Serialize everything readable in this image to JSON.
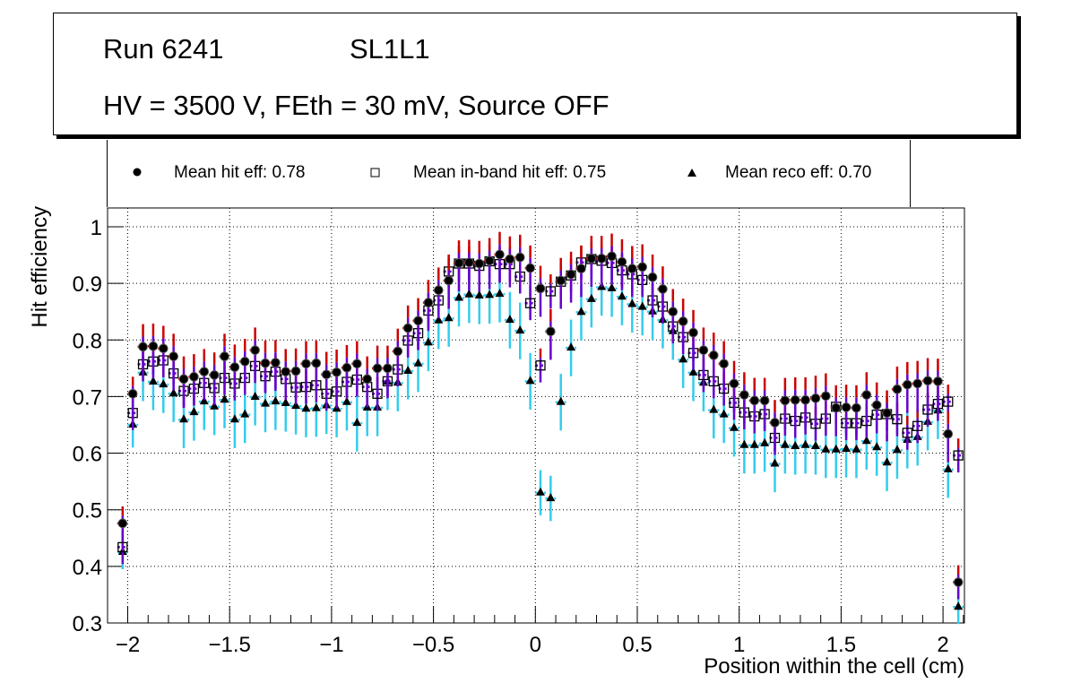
{
  "title_box": {
    "line1_run": "Run 6241",
    "line1_layer": "SL1L1",
    "line2": "HV = 3500 V, FEth = 30 mV, Source OFF"
  },
  "legend": {
    "items": [
      {
        "label": "Mean hit  eff: 0.78",
        "marker": "filled-circle"
      },
      {
        "label": "Mean in-band hit eff: 0.75",
        "marker": "open-square"
      },
      {
        "label": "Mean reco eff: 0.70",
        "marker": "filled-triangle"
      }
    ]
  },
  "chart_data": {
    "type": "scatter",
    "title": "Run 6241 SL1L1 — HV = 3500 V, FEth = 30 mV, Source OFF",
    "xlabel": "Position within the cell (cm)",
    "ylabel": "Hit efficiency",
    "xlim": [
      -2.1,
      2.1
    ],
    "ylim": [
      0.3,
      1.03
    ],
    "xticks": [
      -2,
      -1.5,
      -1,
      -0.5,
      0,
      0.5,
      1,
      1.5,
      2
    ],
    "xtick_labels": [
      "−2",
      "−1.5",
      "−1",
      "−0.5",
      "0",
      "0.5",
      "1",
      "1.5",
      "2"
    ],
    "yticks": [
      0.3,
      0.4,
      0.5,
      0.6,
      0.7,
      0.8,
      0.9,
      1.0
    ],
    "ytick_labels": [
      "0.3",
      "0.4",
      "0.5",
      "0.6",
      "0.7",
      "0.8",
      "0.9",
      "1"
    ],
    "grid": true,
    "legend_position": "top",
    "x": [
      -2.025,
      -1.975,
      -1.925,
      -1.875,
      -1.825,
      -1.775,
      -1.725,
      -1.675,
      -1.625,
      -1.575,
      -1.525,
      -1.475,
      -1.425,
      -1.375,
      -1.325,
      -1.275,
      -1.225,
      -1.175,
      -1.125,
      -1.075,
      -1.025,
      -0.975,
      -0.925,
      -0.875,
      -0.825,
      -0.775,
      -0.725,
      -0.675,
      -0.625,
      -0.575,
      -0.525,
      -0.475,
      -0.425,
      -0.375,
      -0.325,
      -0.275,
      -0.225,
      -0.175,
      -0.125,
      -0.075,
      -0.025,
      0.025,
      0.075,
      0.125,
      0.175,
      0.225,
      0.275,
      0.325,
      0.375,
      0.425,
      0.475,
      0.525,
      0.575,
      0.625,
      0.675,
      0.725,
      0.775,
      0.825,
      0.875,
      0.925,
      0.975,
      1.025,
      1.075,
      1.125,
      1.175,
      1.225,
      1.275,
      1.325,
      1.375,
      1.425,
      1.475,
      1.525,
      1.575,
      1.625,
      1.675,
      1.725,
      1.775,
      1.825,
      1.875,
      1.925,
      1.975,
      2.025,
      2.075
    ],
    "series": [
      {
        "name": "Mean hit  eff: 0.78",
        "marker": "filled-circle",
        "error_colors": [
          "#cc0000",
          "#6600cc"
        ],
        "values": [
          0.476,
          0.705,
          0.788,
          0.789,
          0.785,
          0.771,
          0.731,
          0.735,
          0.744,
          0.738,
          0.771,
          0.752,
          0.762,
          0.782,
          0.759,
          0.76,
          0.744,
          0.745,
          0.758,
          0.759,
          0.739,
          0.743,
          0.751,
          0.758,
          0.731,
          0.75,
          0.75,
          0.78,
          0.821,
          0.834,
          0.866,
          0.888,
          0.905,
          0.936,
          0.937,
          0.935,
          0.94,
          0.951,
          0.943,
          0.946,
          0.927,
          0.891,
          0.815,
          0.905,
          0.916,
          0.926,
          0.944,
          0.944,
          0.948,
          0.938,
          0.926,
          0.929,
          0.911,
          0.89,
          0.85,
          0.833,
          0.813,
          0.782,
          0.773,
          0.758,
          0.723,
          0.703,
          0.693,
          0.693,
          0.654,
          0.693,
          0.694,
          0.694,
          0.697,
          0.701,
          0.68,
          0.681,
          0.68,
          0.703,
          0.685,
          0.671,
          0.713,
          0.721,
          0.723,
          0.728,
          0.727,
          0.634,
          0.372
        ],
        "err_up": [
          0.03,
          0.03,
          0.04,
          0.04,
          0.04,
          0.04,
          0.04,
          0.04,
          0.04,
          0.04,
          0.04,
          0.04,
          0.04,
          0.04,
          0.04,
          0.04,
          0.04,
          0.04,
          0.04,
          0.04,
          0.04,
          0.04,
          0.04,
          0.04,
          0.04,
          0.04,
          0.04,
          0.04,
          0.04,
          0.04,
          0.04,
          0.04,
          0.04,
          0.04,
          0.04,
          0.04,
          0.04,
          0.04,
          0.04,
          0.04,
          0.04,
          0.04,
          0.04,
          0.04,
          0.04,
          0.04,
          0.04,
          0.04,
          0.04,
          0.04,
          0.04,
          0.04,
          0.04,
          0.04,
          0.04,
          0.04,
          0.04,
          0.04,
          0.04,
          0.04,
          0.04,
          0.04,
          0.04,
          0.04,
          0.04,
          0.04,
          0.04,
          0.04,
          0.04,
          0.04,
          0.04,
          0.04,
          0.04,
          0.04,
          0.04,
          0.04,
          0.04,
          0.04,
          0.04,
          0.04,
          0.04,
          0.04,
          0.03
        ],
        "err_down": [
          0.03,
          0.05,
          0.05,
          0.05,
          0.05,
          0.05,
          0.05,
          0.05,
          0.05,
          0.05,
          0.05,
          0.05,
          0.05,
          0.05,
          0.05,
          0.05,
          0.05,
          0.05,
          0.05,
          0.05,
          0.05,
          0.05,
          0.05,
          0.05,
          0.05,
          0.05,
          0.05,
          0.05,
          0.05,
          0.05,
          0.05,
          0.05,
          0.05,
          0.05,
          0.05,
          0.05,
          0.05,
          0.05,
          0.05,
          0.05,
          0.05,
          0.05,
          0.05,
          0.05,
          0.05,
          0.05,
          0.05,
          0.05,
          0.05,
          0.05,
          0.05,
          0.05,
          0.05,
          0.05,
          0.05,
          0.05,
          0.05,
          0.05,
          0.05,
          0.05,
          0.05,
          0.05,
          0.05,
          0.05,
          0.05,
          0.05,
          0.05,
          0.05,
          0.05,
          0.05,
          0.05,
          0.05,
          0.05,
          0.05,
          0.05,
          0.05,
          0.05,
          0.05,
          0.05,
          0.05,
          0.05,
          0.05,
          0.03
        ]
      },
      {
        "name": "Mean in-band hit eff: 0.75",
        "marker": "open-square",
        "error_colors": [
          "#cc0000",
          "#6600cc"
        ],
        "values": [
          0.434,
          0.671,
          0.757,
          0.762,
          0.764,
          0.741,
          0.71,
          0.714,
          0.724,
          0.715,
          0.733,
          0.723,
          0.733,
          0.754,
          0.736,
          0.744,
          0.731,
          0.716,
          0.717,
          0.72,
          0.705,
          0.709,
          0.726,
          0.73,
          0.717,
          0.705,
          0.727,
          0.748,
          0.799,
          0.812,
          0.852,
          0.87,
          0.921,
          0.935,
          0.935,
          0.931,
          0.939,
          0.934,
          0.934,
          0.912,
          0.865,
          0.755,
          0.886,
          0.903,
          0.914,
          0.937,
          0.943,
          0.94,
          0.936,
          0.923,
          0.916,
          0.906,
          0.87,
          0.859,
          0.824,
          0.805,
          0.777,
          0.738,
          0.727,
          0.714,
          0.689,
          0.672,
          0.665,
          0.669,
          0.627,
          0.661,
          0.657,
          0.663,
          0.652,
          0.661,
          0.682,
          0.653,
          0.653,
          0.657,
          0.668,
          0.669,
          0.66,
          0.636,
          0.648,
          0.677,
          0.687,
          0.691,
          0.596
        ],
        "err_up": [
          0.03,
          0.03,
          0.03,
          0.03,
          0.03,
          0.03,
          0.03,
          0.03,
          0.03,
          0.03,
          0.03,
          0.03,
          0.03,
          0.03,
          0.03,
          0.03,
          0.03,
          0.03,
          0.03,
          0.03,
          0.03,
          0.03,
          0.03,
          0.03,
          0.03,
          0.03,
          0.03,
          0.03,
          0.03,
          0.03,
          0.03,
          0.03,
          0.03,
          0.03,
          0.03,
          0.03,
          0.03,
          0.03,
          0.03,
          0.03,
          0.03,
          0.03,
          0.03,
          0.03,
          0.03,
          0.03,
          0.03,
          0.03,
          0.03,
          0.03,
          0.03,
          0.03,
          0.03,
          0.03,
          0.03,
          0.03,
          0.03,
          0.03,
          0.03,
          0.03,
          0.03,
          0.03,
          0.03,
          0.03,
          0.03,
          0.03,
          0.03,
          0.03,
          0.03,
          0.03,
          0.03,
          0.03,
          0.03,
          0.03,
          0.03,
          0.03,
          0.03,
          0.03,
          0.03,
          0.03,
          0.03,
          0.03,
          0.03
        ],
        "err_down": [
          0.03,
          0.03,
          0.03,
          0.03,
          0.03,
          0.03,
          0.03,
          0.03,
          0.03,
          0.03,
          0.03,
          0.03,
          0.03,
          0.03,
          0.03,
          0.03,
          0.03,
          0.03,
          0.03,
          0.03,
          0.03,
          0.03,
          0.03,
          0.03,
          0.03,
          0.03,
          0.03,
          0.03,
          0.03,
          0.03,
          0.03,
          0.03,
          0.03,
          0.03,
          0.03,
          0.03,
          0.03,
          0.03,
          0.03,
          0.03,
          0.03,
          0.03,
          0.03,
          0.03,
          0.03,
          0.03,
          0.03,
          0.03,
          0.03,
          0.03,
          0.03,
          0.03,
          0.03,
          0.03,
          0.03,
          0.03,
          0.03,
          0.03,
          0.03,
          0.03,
          0.03,
          0.03,
          0.03,
          0.03,
          0.03,
          0.03,
          0.03,
          0.03,
          0.03,
          0.03,
          0.03,
          0.03,
          0.03,
          0.03,
          0.03,
          0.03,
          0.03,
          0.03,
          0.03,
          0.03,
          0.03,
          0.03,
          0.03
        ]
      },
      {
        "name": "Mean reco eff: 0.70",
        "marker": "filled-triangle",
        "error_colors": [
          "#33ccee",
          "#33ccee"
        ],
        "values": [
          0.425,
          0.65,
          0.742,
          0.726,
          0.721,
          0.705,
          0.659,
          0.672,
          0.691,
          0.682,
          0.694,
          0.659,
          0.668,
          0.699,
          0.687,
          0.691,
          0.688,
          0.683,
          0.678,
          0.679,
          0.684,
          0.678,
          0.69,
          0.653,
          0.68,
          0.68,
          0.726,
          0.724,
          0.745,
          0.758,
          0.795,
          0.834,
          0.838,
          0.874,
          0.88,
          0.878,
          0.879,
          0.881,
          0.835,
          0.816,
          0.727,
          0.53,
          0.52,
          0.69,
          0.786,
          0.849,
          0.872,
          0.893,
          0.891,
          0.876,
          0.863,
          0.858,
          0.85,
          0.835,
          0.815,
          0.765,
          0.742,
          0.724,
          0.676,
          0.668,
          0.644,
          0.614,
          0.614,
          0.617,
          0.581,
          0.614,
          0.612,
          0.614,
          0.612,
          0.606,
          0.606,
          0.607,
          0.606,
          0.621,
          0.61,
          0.583,
          0.605,
          0.623,
          0.628,
          0.655,
          0.675,
          0.571,
          0.328
        ],
        "err_up": [
          0.03,
          0.04,
          0.05,
          0.05,
          0.05,
          0.05,
          0.05,
          0.05,
          0.05,
          0.05,
          0.05,
          0.05,
          0.05,
          0.05,
          0.05,
          0.05,
          0.05,
          0.05,
          0.05,
          0.05,
          0.05,
          0.05,
          0.05,
          0.05,
          0.05,
          0.05,
          0.05,
          0.05,
          0.05,
          0.05,
          0.05,
          0.05,
          0.05,
          0.05,
          0.05,
          0.05,
          0.05,
          0.05,
          0.05,
          0.05,
          0.05,
          0.04,
          0.04,
          0.05,
          0.05,
          0.05,
          0.05,
          0.05,
          0.05,
          0.05,
          0.05,
          0.05,
          0.05,
          0.05,
          0.05,
          0.05,
          0.05,
          0.05,
          0.05,
          0.05,
          0.05,
          0.05,
          0.05,
          0.05,
          0.05,
          0.05,
          0.05,
          0.05,
          0.05,
          0.05,
          0.05,
          0.05,
          0.05,
          0.05,
          0.05,
          0.05,
          0.05,
          0.05,
          0.05,
          0.05,
          0.05,
          0.05,
          0.03
        ],
        "err_down": [
          0.03,
          0.04,
          0.05,
          0.05,
          0.05,
          0.05,
          0.05,
          0.05,
          0.05,
          0.05,
          0.05,
          0.05,
          0.05,
          0.05,
          0.05,
          0.05,
          0.05,
          0.05,
          0.05,
          0.05,
          0.05,
          0.05,
          0.05,
          0.05,
          0.05,
          0.05,
          0.05,
          0.05,
          0.05,
          0.05,
          0.05,
          0.05,
          0.05,
          0.05,
          0.05,
          0.05,
          0.05,
          0.05,
          0.05,
          0.05,
          0.05,
          0.04,
          0.04,
          0.05,
          0.05,
          0.05,
          0.05,
          0.05,
          0.05,
          0.05,
          0.05,
          0.05,
          0.05,
          0.05,
          0.05,
          0.05,
          0.05,
          0.05,
          0.05,
          0.05,
          0.05,
          0.05,
          0.05,
          0.05,
          0.05,
          0.05,
          0.05,
          0.05,
          0.05,
          0.05,
          0.05,
          0.05,
          0.05,
          0.05,
          0.05,
          0.05,
          0.05,
          0.05,
          0.05,
          0.05,
          0.05,
          0.05,
          0.03
        ]
      }
    ]
  }
}
